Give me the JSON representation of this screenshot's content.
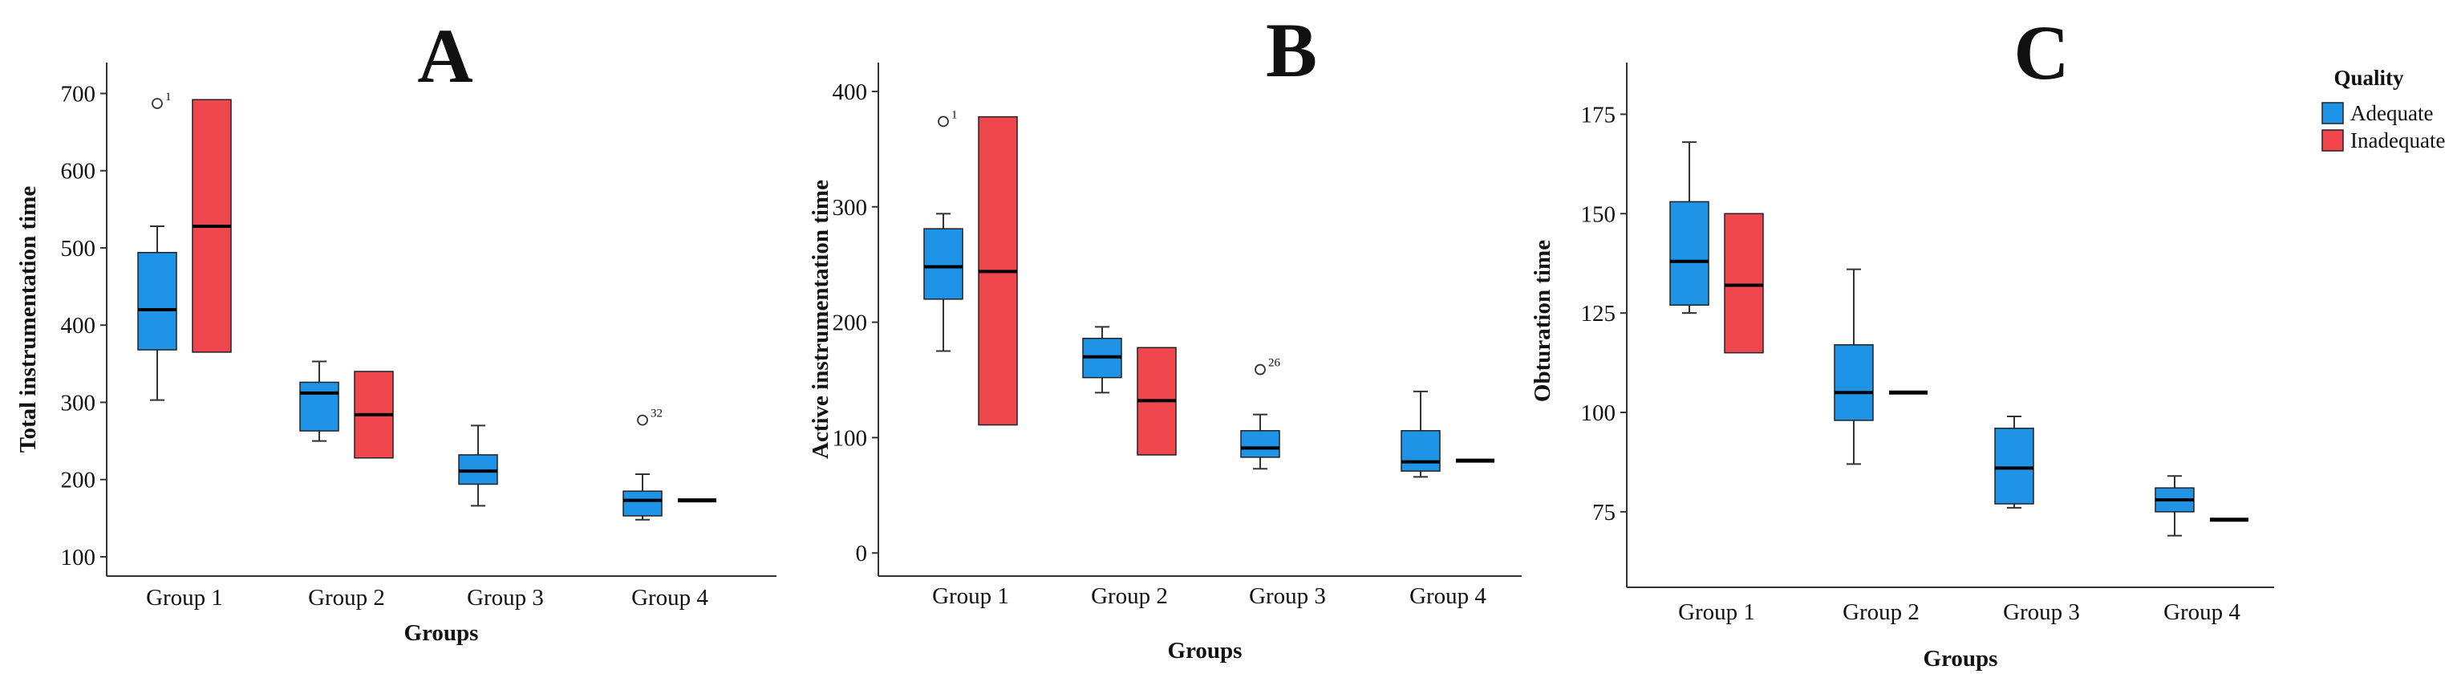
{
  "colors": {
    "adequate": "#1f93e6",
    "inadequate": "#f0474f",
    "axis": "#333333",
    "median": "#000000"
  },
  "legend": {
    "title": "Quality",
    "items": [
      {
        "label": "Adequate",
        "color": "#1f93e6"
      },
      {
        "label": "Inadequate",
        "color": "#f0474f"
      }
    ]
  },
  "chart_data": [
    {
      "type": "box",
      "panel": "A",
      "ylabel": "Total instrumentation time",
      "xlabel": "Groups",
      "categories": [
        "Group 1",
        "Group 2",
        "Group 3",
        "Group 4"
      ],
      "ylim": [
        75,
        740
      ],
      "yticks": [
        100,
        200,
        300,
        400,
        500,
        600,
        700
      ],
      "series": [
        {
          "name": "Adequate",
          "boxes": [
            {
              "min": 303,
              "q1": 368,
              "median": 420,
              "q3": 494,
              "max": 528,
              "outliers": [
                {
                  "value": 687,
                  "label": "1"
                }
              ]
            },
            {
              "min": 250,
              "q1": 263,
              "median": 312,
              "q3": 326,
              "max": 353,
              "outliers": []
            },
            {
              "min": 166,
              "q1": 194,
              "median": 211,
              "q3": 232,
              "max": 270,
              "outliers": []
            },
            {
              "min": 148,
              "q1": 153,
              "median": 173,
              "q3": 185,
              "max": 207,
              "outliers": [
                {
                  "value": 277,
                  "label": "32"
                }
              ]
            }
          ]
        },
        {
          "name": "Inadequate",
          "boxes": [
            {
              "min": 365,
              "q1": 365,
              "median": 528,
              "q3": 692,
              "max": 692,
              "outliers": []
            },
            {
              "min": 228,
              "q1": 228,
              "median": 284,
              "q3": 340,
              "max": 340,
              "outliers": []
            },
            null,
            {
              "min": 173,
              "q1": 173,
              "median": 173,
              "q3": 173,
              "max": 173,
              "outliers": []
            }
          ]
        }
      ]
    },
    {
      "type": "box",
      "panel": "B",
      "ylabel": "Active instrumentation time",
      "xlabel": "Groups",
      "categories": [
        "Group 1",
        "Group 2",
        "Group 3",
        "Group 4"
      ],
      "ylim": [
        -20,
        425
      ],
      "yticks": [
        0,
        100,
        200,
        300,
        400
      ],
      "series": [
        {
          "name": "Adequate",
          "boxes": [
            {
              "min": 175,
              "q1": 220,
              "median": 248,
              "q3": 281,
              "max": 294,
              "outliers": [
                {
                  "value": 374,
                  "label": "1"
                }
              ]
            },
            {
              "min": 139,
              "q1": 152,
              "median": 170,
              "q3": 186,
              "max": 196,
              "outliers": []
            },
            {
              "min": 73,
              "q1": 83,
              "median": 91,
              "q3": 106,
              "max": 120,
              "outliers": [
                {
                  "value": 159,
                  "label": "26"
                }
              ]
            },
            {
              "min": 66,
              "q1": 71,
              "median": 79,
              "q3": 106,
              "max": 140,
              "outliers": []
            }
          ]
        },
        {
          "name": "Inadequate",
          "boxes": [
            {
              "min": 111,
              "q1": 111,
              "median": 244,
              "q3": 378,
              "max": 378,
              "outliers": []
            },
            {
              "min": 85,
              "q1": 85,
              "median": 132,
              "q3": 178,
              "max": 178,
              "outliers": []
            },
            null,
            {
              "min": 80,
              "q1": 80,
              "median": 80,
              "q3": 80,
              "max": 80,
              "outliers": []
            }
          ]
        }
      ]
    },
    {
      "type": "box",
      "panel": "C",
      "ylabel": "Obturation time",
      "xlabel": "Groups",
      "categories": [
        "Group 1",
        "Group 2",
        "Group 3",
        "Group 4"
      ],
      "ylim": [
        56,
        188
      ],
      "yticks": [
        75,
        100,
        125,
        150,
        175
      ],
      "series": [
        {
          "name": "Adequate",
          "boxes": [
            {
              "min": 125,
              "q1": 127,
              "median": 138,
              "q3": 153,
              "max": 168,
              "outliers": []
            },
            {
              "min": 87,
              "q1": 98,
              "median": 105,
              "q3": 117,
              "max": 136,
              "outliers": []
            },
            {
              "min": 76,
              "q1": 77,
              "median": 86,
              "q3": 96,
              "max": 99,
              "outliers": []
            },
            {
              "min": 69,
              "q1": 75,
              "median": 78,
              "q3": 81,
              "max": 84,
              "outliers": []
            }
          ]
        },
        {
          "name": "Inadequate",
          "boxes": [
            {
              "min": 115,
              "q1": 115,
              "median": 132,
              "q3": 150,
              "max": 150,
              "outliers": []
            },
            {
              "min": 105,
              "q1": 105,
              "median": 105,
              "q3": 105,
              "max": 105,
              "outliers": []
            },
            null,
            {
              "min": 73,
              "q1": 73,
              "median": 73,
              "q3": 73,
              "max": 73,
              "outliers": []
            }
          ]
        }
      ]
    }
  ]
}
